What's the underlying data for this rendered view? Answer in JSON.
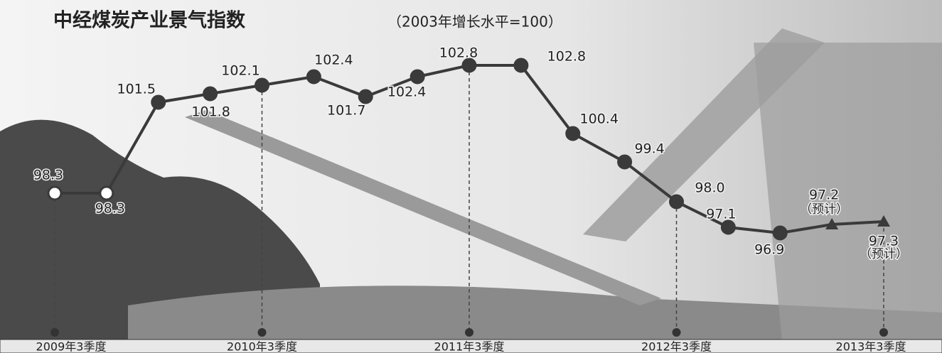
{
  "chart_data": {
    "type": "line",
    "title": "中经煤炭产业景气指数",
    "subtitle": "（2003年增长水平=100）",
    "categories": [
      "2009年3季度",
      null,
      null,
      null,
      "2010年3季度",
      null,
      null,
      null,
      "2011年3季度",
      null,
      null,
      null,
      "2012年3季度",
      null,
      null,
      null,
      "2013年3季度"
    ],
    "values": [
      98.3,
      98.3,
      101.5,
      101.8,
      102.1,
      102.4,
      101.7,
      102.4,
      102.8,
      102.8,
      100.4,
      99.4,
      98.0,
      97.1,
      96.9,
      97.2,
      97.3
    ],
    "value_labels": [
      "98.3",
      "98.3",
      "101.5",
      "101.8",
      "102.1",
      "102.4",
      "101.7",
      "102.4",
      "102.8",
      "102.8",
      "100.4",
      "99.4",
      "98.0",
      "97.1",
      "96.9",
      "97.2",
      "97.3"
    ],
    "point_notes": [
      null,
      null,
      null,
      null,
      null,
      null,
      null,
      null,
      null,
      null,
      null,
      null,
      null,
      null,
      null,
      "（预计）",
      "（预计）"
    ],
    "color": "#3a3a3a"
  }
}
